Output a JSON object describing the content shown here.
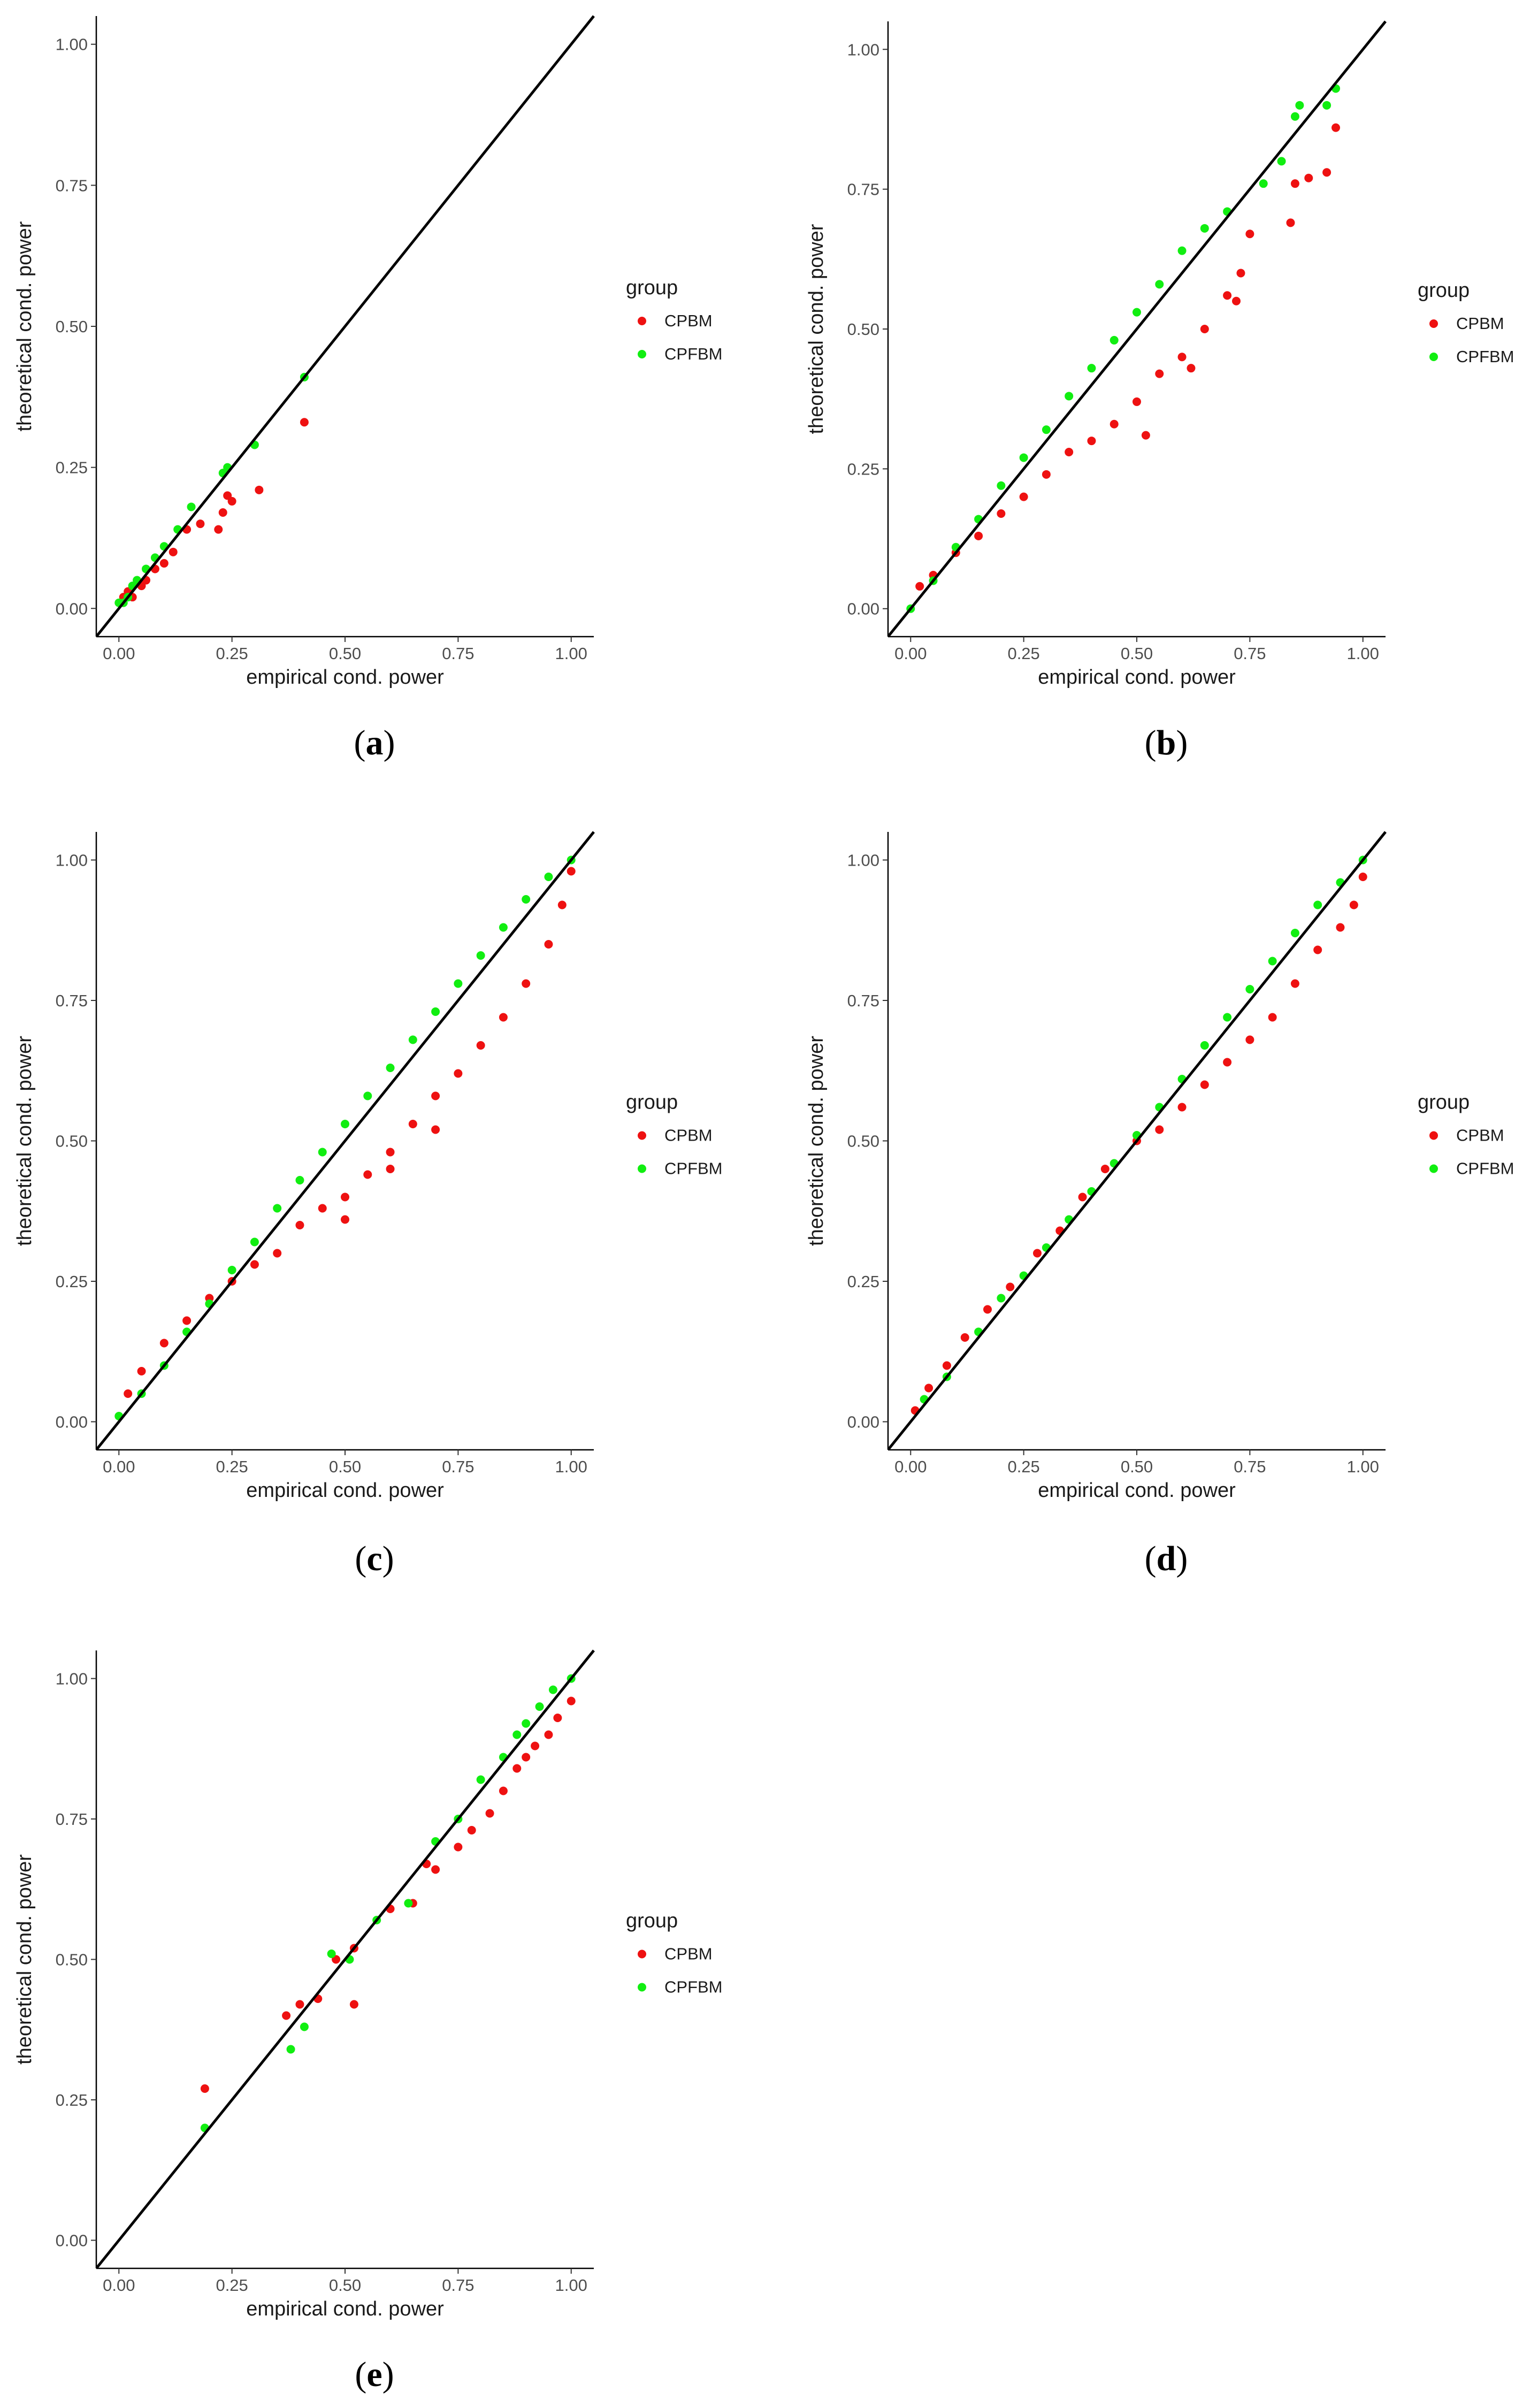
{
  "figure": {
    "legend_title": "group",
    "colors": {
      "CPBM": "#ee1111",
      "CPFBM": "#11ee11",
      "reference_line": "#000000",
      "axis": "#000000"
    }
  },
  "chart_data": [
    {
      "type": "scatter",
      "panel": "a",
      "caption": "(a)",
      "caption_letter": "a",
      "xlabel": "empirical cond. power",
      "ylabel": "theoretical cond. power",
      "xlim": [
        0,
        1
      ],
      "ylim": [
        0,
        1
      ],
      "xticks": [
        "0.00",
        "0.25",
        "0.50",
        "0.75",
        "1.00"
      ],
      "yticks": [
        "0.00",
        "0.25",
        "0.50",
        "0.75",
        "1.00"
      ],
      "reference_line": "y = x",
      "legend": {
        "title": "group",
        "entries": [
          "CPBM",
          "CPFBM"
        ]
      },
      "series": [
        {
          "name": "CPBM",
          "points": [
            [
              0.01,
              0.02
            ],
            [
              0.02,
              0.03
            ],
            [
              0.03,
              0.02
            ],
            [
              0.05,
              0.04
            ],
            [
              0.06,
              0.05
            ],
            [
              0.08,
              0.07
            ],
            [
              0.1,
              0.08
            ],
            [
              0.12,
              0.1
            ],
            [
              0.15,
              0.14
            ],
            [
              0.18,
              0.15
            ],
            [
              0.22,
              0.14
            ],
            [
              0.23,
              0.17
            ],
            [
              0.24,
              0.2
            ],
            [
              0.25,
              0.19
            ],
            [
              0.31,
              0.21
            ],
            [
              0.41,
              0.33
            ]
          ]
        },
        {
          "name": "CPFBM",
          "points": [
            [
              0.0,
              0.01
            ],
            [
              0.01,
              0.01
            ],
            [
              0.02,
              0.02
            ],
            [
              0.03,
              0.04
            ],
            [
              0.04,
              0.05
            ],
            [
              0.06,
              0.07
            ],
            [
              0.08,
              0.09
            ],
            [
              0.1,
              0.11
            ],
            [
              0.13,
              0.14
            ],
            [
              0.16,
              0.18
            ],
            [
              0.23,
              0.24
            ],
            [
              0.24,
              0.25
            ],
            [
              0.3,
              0.29
            ],
            [
              0.41,
              0.41
            ]
          ]
        }
      ]
    },
    {
      "type": "scatter",
      "panel": "b",
      "caption": "(b)",
      "caption_letter": "b",
      "xlabel": "empirical cond. power",
      "ylabel": "theoretical cond. power",
      "xlim": [
        0,
        1
      ],
      "ylim": [
        0,
        1
      ],
      "xticks": [
        "0.00",
        "0.25",
        "0.50",
        "0.75",
        "1.00"
      ],
      "yticks": [
        "0.00",
        "0.25",
        "0.50",
        "0.75",
        "1.00"
      ],
      "reference_line": "y = x",
      "legend": {
        "title": "group",
        "entries": [
          "CPBM",
          "CPFBM"
        ]
      },
      "series": [
        {
          "name": "CPBM",
          "points": [
            [
              0.02,
              0.04
            ],
            [
              0.05,
              0.06
            ],
            [
              0.1,
              0.1
            ],
            [
              0.15,
              0.13
            ],
            [
              0.2,
              0.17
            ],
            [
              0.25,
              0.2
            ],
            [
              0.3,
              0.24
            ],
            [
              0.35,
              0.28
            ],
            [
              0.4,
              0.3
            ],
            [
              0.45,
              0.33
            ],
            [
              0.5,
              0.37
            ],
            [
              0.55,
              0.42
            ],
            [
              0.6,
              0.45
            ],
            [
              0.65,
              0.5
            ],
            [
              0.7,
              0.56
            ],
            [
              0.72,
              0.55
            ],
            [
              0.75,
              0.67
            ],
            [
              0.84,
              0.69
            ],
            [
              0.85,
              0.76
            ],
            [
              0.88,
              0.77
            ],
            [
              0.92,
              0.78
            ],
            [
              0.94,
              0.86
            ],
            [
              0.73,
              0.6
            ],
            [
              0.52,
              0.31
            ],
            [
              0.62,
              0.43
            ]
          ]
        },
        {
          "name": "CPFBM",
          "points": [
            [
              0.0,
              0.0
            ],
            [
              0.05,
              0.05
            ],
            [
              0.1,
              0.11
            ],
            [
              0.15,
              0.16
            ],
            [
              0.2,
              0.22
            ],
            [
              0.25,
              0.27
            ],
            [
              0.3,
              0.32
            ],
            [
              0.35,
              0.38
            ],
            [
              0.4,
              0.43
            ],
            [
              0.45,
              0.48
            ],
            [
              0.5,
              0.53
            ],
            [
              0.55,
              0.58
            ],
            [
              0.6,
              0.64
            ],
            [
              0.65,
              0.68
            ],
            [
              0.7,
              0.71
            ],
            [
              0.78,
              0.76
            ],
            [
              0.82,
              0.8
            ],
            [
              0.85,
              0.88
            ],
            [
              0.86,
              0.9
            ],
            [
              0.92,
              0.9
            ],
            [
              0.94,
              0.93
            ]
          ]
        }
      ]
    },
    {
      "type": "scatter",
      "panel": "c",
      "caption": "(c)",
      "caption_letter": "c",
      "xlabel": "empirical cond. power",
      "ylabel": "theoretical cond. power",
      "xlim": [
        0,
        1
      ],
      "ylim": [
        0,
        1
      ],
      "xticks": [
        "0.00",
        "0.25",
        "0.50",
        "0.75",
        "1.00"
      ],
      "yticks": [
        "0.00",
        "0.25",
        "0.50",
        "0.75",
        "1.00"
      ],
      "reference_line": "y = x",
      "legend": {
        "title": "group",
        "entries": [
          "CPBM",
          "CPFBM"
        ]
      },
      "series": [
        {
          "name": "CPBM",
          "points": [
            [
              0.02,
              0.05
            ],
            [
              0.05,
              0.09
            ],
            [
              0.1,
              0.14
            ],
            [
              0.15,
              0.18
            ],
            [
              0.2,
              0.22
            ],
            [
              0.25,
              0.25
            ],
            [
              0.3,
              0.28
            ],
            [
              0.35,
              0.3
            ],
            [
              0.4,
              0.35
            ],
            [
              0.45,
              0.38
            ],
            [
              0.5,
              0.4
            ],
            [
              0.55,
              0.44
            ],
            [
              0.6,
              0.48
            ],
            [
              0.65,
              0.53
            ],
            [
              0.7,
              0.58
            ],
            [
              0.75,
              0.62
            ],
            [
              0.8,
              0.67
            ],
            [
              0.85,
              0.72
            ],
            [
              0.9,
              0.78
            ],
            [
              0.95,
              0.85
            ],
            [
              0.98,
              0.92
            ],
            [
              1.0,
              0.98
            ],
            [
              0.6,
              0.45
            ],
            [
              0.7,
              0.52
            ],
            [
              0.5,
              0.36
            ]
          ]
        },
        {
          "name": "CPFBM",
          "points": [
            [
              0.0,
              0.01
            ],
            [
              0.05,
              0.05
            ],
            [
              0.1,
              0.1
            ],
            [
              0.15,
              0.16
            ],
            [
              0.2,
              0.21
            ],
            [
              0.25,
              0.27
            ],
            [
              0.3,
              0.32
            ],
            [
              0.35,
              0.38
            ],
            [
              0.4,
              0.43
            ],
            [
              0.45,
              0.48
            ],
            [
              0.5,
              0.53
            ],
            [
              0.55,
              0.58
            ],
            [
              0.6,
              0.63
            ],
            [
              0.65,
              0.68
            ],
            [
              0.7,
              0.73
            ],
            [
              0.75,
              0.78
            ],
            [
              0.8,
              0.83
            ],
            [
              0.85,
              0.88
            ],
            [
              0.9,
              0.93
            ],
            [
              0.95,
              0.97
            ],
            [
              1.0,
              1.0
            ]
          ]
        }
      ]
    },
    {
      "type": "scatter",
      "panel": "d",
      "caption": "(d)",
      "caption_letter": "d",
      "xlabel": "empirical cond. power",
      "ylabel": "theoretical cond. power",
      "xlim": [
        0,
        1
      ],
      "ylim": [
        0,
        1
      ],
      "xticks": [
        "0.00",
        "0.25",
        "0.50",
        "0.75",
        "1.00"
      ],
      "yticks": [
        "0.00",
        "0.25",
        "0.50",
        "0.75",
        "1.00"
      ],
      "reference_line": "y = x",
      "legend": {
        "title": "group",
        "entries": [
          "CPBM",
          "CPFBM"
        ]
      },
      "series": [
        {
          "name": "CPBM",
          "points": [
            [
              0.01,
              0.02
            ],
            [
              0.04,
              0.06
            ],
            [
              0.08,
              0.1
            ],
            [
              0.12,
              0.15
            ],
            [
              0.17,
              0.2
            ],
            [
              0.22,
              0.24
            ],
            [
              0.28,
              0.3
            ],
            [
              0.33,
              0.34
            ],
            [
              0.38,
              0.4
            ],
            [
              0.43,
              0.45
            ],
            [
              0.5,
              0.5
            ],
            [
              0.55,
              0.52
            ],
            [
              0.6,
              0.56
            ],
            [
              0.65,
              0.6
            ],
            [
              0.7,
              0.64
            ],
            [
              0.75,
              0.68
            ],
            [
              0.8,
              0.72
            ],
            [
              0.85,
              0.78
            ],
            [
              0.9,
              0.84
            ],
            [
              0.95,
              0.88
            ],
            [
              0.98,
              0.92
            ],
            [
              1.0,
              0.97
            ]
          ]
        },
        {
          "name": "CPFBM",
          "points": [
            [
              0.03,
              0.04
            ],
            [
              0.08,
              0.08
            ],
            [
              0.15,
              0.16
            ],
            [
              0.2,
              0.22
            ],
            [
              0.25,
              0.26
            ],
            [
              0.3,
              0.31
            ],
            [
              0.35,
              0.36
            ],
            [
              0.4,
              0.41
            ],
            [
              0.45,
              0.46
            ],
            [
              0.5,
              0.51
            ],
            [
              0.55,
              0.56
            ],
            [
              0.6,
              0.61
            ],
            [
              0.65,
              0.67
            ],
            [
              0.7,
              0.72
            ],
            [
              0.75,
              0.77
            ],
            [
              0.8,
              0.82
            ],
            [
              0.85,
              0.87
            ],
            [
              0.9,
              0.92
            ],
            [
              0.95,
              0.96
            ],
            [
              1.0,
              1.0
            ]
          ]
        }
      ]
    },
    {
      "type": "scatter",
      "panel": "e",
      "caption": "(e)",
      "caption_letter": "e",
      "xlabel": "empirical cond. power",
      "ylabel": "theoretical cond. power",
      "xlim": [
        0,
        1
      ],
      "ylim": [
        0,
        1
      ],
      "xticks": [
        "0.00",
        "0.25",
        "0.50",
        "0.75",
        "1.00"
      ],
      "yticks": [
        "0.00",
        "0.25",
        "0.50",
        "0.75",
        "1.00"
      ],
      "reference_line": "y = x",
      "legend": {
        "title": "group",
        "entries": [
          "CPBM",
          "CPFBM"
        ]
      },
      "series": [
        {
          "name": "CPBM",
          "points": [
            [
              0.19,
              0.27
            ],
            [
              0.37,
              0.4
            ],
            [
              0.4,
              0.42
            ],
            [
              0.44,
              0.43
            ],
            [
              0.52,
              0.42
            ],
            [
              0.48,
              0.5
            ],
            [
              0.52,
              0.52
            ],
            [
              0.6,
              0.59
            ],
            [
              0.65,
              0.6
            ],
            [
              0.68,
              0.67
            ],
            [
              0.7,
              0.66
            ],
            [
              0.75,
              0.7
            ],
            [
              0.78,
              0.73
            ],
            [
              0.82,
              0.76
            ],
            [
              0.85,
              0.8
            ],
            [
              0.88,
              0.84
            ],
            [
              0.9,
              0.86
            ],
            [
              0.92,
              0.88
            ],
            [
              0.95,
              0.9
            ],
            [
              0.97,
              0.93
            ],
            [
              1.0,
              0.96
            ]
          ]
        },
        {
          "name": "CPFBM",
          "points": [
            [
              0.19,
              0.2
            ],
            [
              0.38,
              0.34
            ],
            [
              0.41,
              0.38
            ],
            [
              0.47,
              0.51
            ],
            [
              0.51,
              0.5
            ],
            [
              0.57,
              0.57
            ],
            [
              0.64,
              0.6
            ],
            [
              0.7,
              0.71
            ],
            [
              0.75,
              0.75
            ],
            [
              0.8,
              0.82
            ],
            [
              0.85,
              0.86
            ],
            [
              0.88,
              0.9
            ],
            [
              0.9,
              0.92
            ],
            [
              0.93,
              0.95
            ],
            [
              0.96,
              0.98
            ],
            [
              1.0,
              1.0
            ]
          ]
        }
      ]
    }
  ]
}
